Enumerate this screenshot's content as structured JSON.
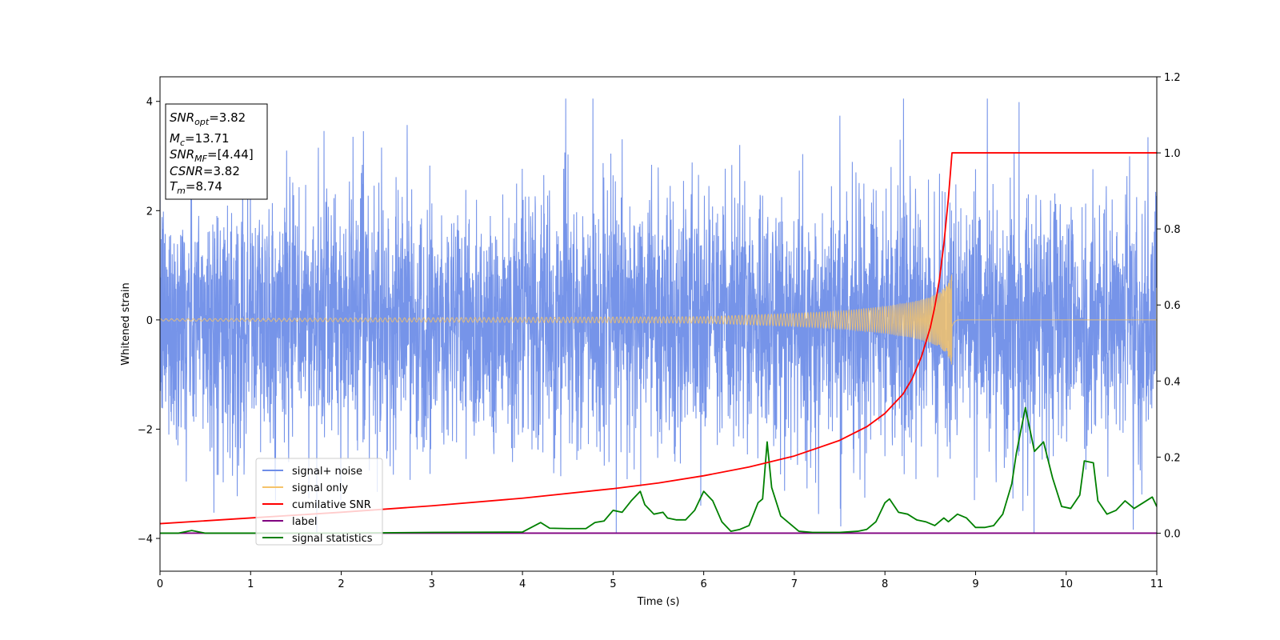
{
  "chart_data": {
    "type": "line",
    "xlabel": "Time (s)",
    "ylabel": "Whitened strain",
    "xlim": [
      0,
      11
    ],
    "ylim_left": [
      -4.6,
      4.45
    ],
    "ylim_right": [
      -0.1,
      1.2
    ],
    "x_ticks": [
      "0",
      "1",
      "2",
      "3",
      "4",
      "5",
      "6",
      "7",
      "8",
      "9",
      "10",
      "11"
    ],
    "y_ticks_left": [
      "−4",
      "−2",
      "0",
      "2",
      "4"
    ],
    "y_ticks_right": [
      "0.0",
      "0.2",
      "0.4",
      "0.6",
      "0.8",
      "1.0",
      "1.2"
    ],
    "grid": false,
    "legend_position": "lower-left",
    "legend": [
      {
        "label": "signal+ noise",
        "color": "#6f8ee8"
      },
      {
        "label": "signal only",
        "color": "#f5c36a"
      },
      {
        "label": "cumilative SNR",
        "color": "#ff0000"
      },
      {
        "label": "label",
        "color": "#800080"
      },
      {
        "label": "signal statistics",
        "color": "#008000"
      }
    ],
    "info_box": {
      "snr_opt": {
        "symbol": "SNR",
        "sub": "opt",
        "value": "=3.82"
      },
      "mc": {
        "symbol": "M",
        "sub": "c",
        "value": "=13.71"
      },
      "snr_mf": {
        "symbol": "SNR",
        "sub": "MF",
        "value": "=[4.44]"
      },
      "csnr": {
        "symbol": "CSNR",
        "value": "=3.82"
      },
      "tm": {
        "symbol": "T",
        "sub": "m",
        "value": "=8.74"
      }
    },
    "series": [
      {
        "name": "signal+ noise",
        "axis": "left",
        "color": "#6f8ee8",
        "noise_sd": 1.15,
        "samples": 4400
      },
      {
        "name": "signal only",
        "axis": "left",
        "color": "#f5c36a",
        "merger_time": 8.74,
        "envelope_points": [
          [
            0,
            0.02
          ],
          [
            6,
            0.06
          ],
          [
            7,
            0.12
          ],
          [
            7.5,
            0.16
          ],
          [
            8,
            0.25
          ],
          [
            8.3,
            0.33
          ],
          [
            8.5,
            0.42
          ],
          [
            8.6,
            0.5
          ],
          [
            8.68,
            0.62
          ],
          [
            8.72,
            0.75
          ],
          [
            8.74,
            0.85
          ],
          [
            8.76,
            0.3
          ],
          [
            8.8,
            0
          ]
        ]
      },
      {
        "name": "cumilative SNR",
        "axis": "right",
        "color": "#ff0000",
        "points": [
          [
            0,
            0.025
          ],
          [
            1,
            0.04
          ],
          [
            2,
            0.055
          ],
          [
            3,
            0.072
          ],
          [
            4,
            0.092
          ],
          [
            5,
            0.117
          ],
          [
            5.5,
            0.132
          ],
          [
            6,
            0.151
          ],
          [
            6.5,
            0.174
          ],
          [
            7,
            0.203
          ],
          [
            7.5,
            0.244
          ],
          [
            7.8,
            0.28
          ],
          [
            8.0,
            0.315
          ],
          [
            8.2,
            0.366
          ],
          [
            8.3,
            0.406
          ],
          [
            8.4,
            0.462
          ],
          [
            8.5,
            0.54
          ],
          [
            8.55,
            0.595
          ],
          [
            8.6,
            0.665
          ],
          [
            8.65,
            0.76
          ],
          [
            8.7,
            0.88
          ],
          [
            8.74,
            1.0
          ],
          [
            11,
            1.0
          ]
        ]
      },
      {
        "name": "label",
        "axis": "right",
        "color": "#800080",
        "points": [
          [
            0,
            0.0
          ],
          [
            11,
            0.0
          ]
        ]
      },
      {
        "name": "signal statistics",
        "axis": "right",
        "color": "#008000",
        "points": [
          [
            0,
            0.0
          ],
          [
            0.2,
            0.0
          ],
          [
            0.35,
            0.007
          ],
          [
            0.5,
            0.0
          ],
          [
            1,
            0.0
          ],
          [
            2,
            0.0
          ],
          [
            3,
            0.002
          ],
          [
            4,
            0.003
          ],
          [
            4.2,
            0.028
          ],
          [
            4.3,
            0.013
          ],
          [
            4.5,
            0.012
          ],
          [
            4.7,
            0.012
          ],
          [
            4.8,
            0.028
          ],
          [
            4.9,
            0.032
          ],
          [
            5.0,
            0.06
          ],
          [
            5.1,
            0.055
          ],
          [
            5.2,
            0.085
          ],
          [
            5.3,
            0.11
          ],
          [
            5.35,
            0.075
          ],
          [
            5.45,
            0.05
          ],
          [
            5.55,
            0.055
          ],
          [
            5.6,
            0.04
          ],
          [
            5.7,
            0.035
          ],
          [
            5.8,
            0.035
          ],
          [
            5.9,
            0.06
          ],
          [
            6.0,
            0.11
          ],
          [
            6.1,
            0.085
          ],
          [
            6.2,
            0.03
          ],
          [
            6.3,
            0.005
          ],
          [
            6.4,
            0.01
          ],
          [
            6.5,
            0.02
          ],
          [
            6.6,
            0.08
          ],
          [
            6.65,
            0.09
          ],
          [
            6.7,
            0.24
          ],
          [
            6.75,
            0.12
          ],
          [
            6.85,
            0.045
          ],
          [
            6.95,
            0.025
          ],
          [
            7.05,
            0.005
          ],
          [
            7.2,
            0.002
          ],
          [
            7.5,
            0.002
          ],
          [
            7.7,
            0.005
          ],
          [
            7.8,
            0.01
          ],
          [
            7.9,
            0.03
          ],
          [
            8.0,
            0.08
          ],
          [
            8.05,
            0.09
          ],
          [
            8.15,
            0.055
          ],
          [
            8.25,
            0.05
          ],
          [
            8.35,
            0.035
          ],
          [
            8.45,
            0.03
          ],
          [
            8.55,
            0.02
          ],
          [
            8.65,
            0.04
          ],
          [
            8.7,
            0.03
          ],
          [
            8.8,
            0.05
          ],
          [
            8.9,
            0.04
          ],
          [
            9.0,
            0.015
          ],
          [
            9.1,
            0.015
          ],
          [
            9.2,
            0.02
          ],
          [
            9.3,
            0.05
          ],
          [
            9.4,
            0.13
          ],
          [
            9.45,
            0.21
          ],
          [
            9.55,
            0.33
          ],
          [
            9.65,
            0.215
          ],
          [
            9.75,
            0.24
          ],
          [
            9.85,
            0.145
          ],
          [
            9.95,
            0.07
          ],
          [
            10.05,
            0.065
          ],
          [
            10.15,
            0.1
          ],
          [
            10.2,
            0.19
          ],
          [
            10.3,
            0.185
          ],
          [
            10.35,
            0.085
          ],
          [
            10.45,
            0.05
          ],
          [
            10.55,
            0.06
          ],
          [
            10.65,
            0.085
          ],
          [
            10.75,
            0.065
          ],
          [
            10.85,
            0.08
          ],
          [
            10.95,
            0.095
          ],
          [
            11,
            0.07
          ]
        ]
      }
    ]
  }
}
